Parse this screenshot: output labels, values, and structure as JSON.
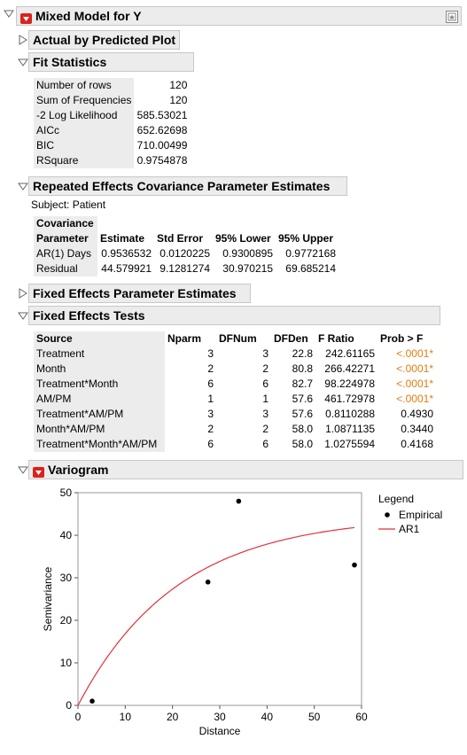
{
  "report": {
    "title": "Mixed Model for Y",
    "sections": {
      "actual_pred": "Actual by Predicted Plot",
      "fit_stats": "Fit Statistics",
      "repeated": "Repeated Effects Covariance Parameter Estimates",
      "fixed_params": "Fixed Effects Parameter Estimates",
      "fixed_tests": "Fixed Effects Tests",
      "variogram": "Variogram"
    }
  },
  "fit_statistics": [
    {
      "label": "Number of rows",
      "value": "120"
    },
    {
      "label": "Sum of Frequencies",
      "value": "120"
    },
    {
      "label": "-2 Log Likelihood",
      "value": "585.53021"
    },
    {
      "label": "AICc",
      "value": "652.62698"
    },
    {
      "label": "BIC",
      "value": "710.00499"
    },
    {
      "label": "RSquare",
      "value": "0.9754878"
    }
  ],
  "repeated": {
    "subject": "Subject: Patient",
    "headers": [
      "Covariance",
      "Parameter",
      "Estimate",
      "Std Error",
      "95% Lower",
      "95% Upper"
    ],
    "rows": [
      {
        "param": "AR(1) Days",
        "estimate": "0.9536532",
        "std_error": "0.0120225",
        "lower": "0.9300895",
        "upper": "0.9772168"
      },
      {
        "param": "Residual",
        "estimate": "44.579921",
        "std_error": "9.1281274",
        "lower": "30.970215",
        "upper": "69.685214"
      }
    ]
  },
  "fixed_tests": {
    "headers": [
      "Source",
      "Nparm",
      "DFNum",
      "DFDen",
      "F Ratio",
      "Prob > F"
    ],
    "rows": [
      {
        "source": "Treatment",
        "nparm": "3",
        "dfnum": "3",
        "dfden": "22.8",
        "f": "242.61165",
        "p": "<.0001*",
        "sig": true
      },
      {
        "source": "Month",
        "nparm": "2",
        "dfnum": "2",
        "dfden": "80.8",
        "f": "266.42271",
        "p": "<.0001*",
        "sig": true
      },
      {
        "source": "Treatment*Month",
        "nparm": "6",
        "dfnum": "6",
        "dfden": "82.7",
        "f": "98.224978",
        "p": "<.0001*",
        "sig": true
      },
      {
        "source": "AM/PM",
        "nparm": "1",
        "dfnum": "1",
        "dfden": "57.6",
        "f": "461.72978",
        "p": "<.0001*",
        "sig": true
      },
      {
        "source": "Treatment*AM/PM",
        "nparm": "3",
        "dfnum": "3",
        "dfden": "57.6",
        "f": "0.8110288",
        "p": "0.4930",
        "sig": false
      },
      {
        "source": "Month*AM/PM",
        "nparm": "2",
        "dfnum": "2",
        "dfden": "58.0",
        "f": "1.0871135",
        "p": "0.3440",
        "sig": false
      },
      {
        "source": "Treatment*Month*AM/PM",
        "nparm": "6",
        "dfnum": "6",
        "dfden": "58.0",
        "f": "1.0275594",
        "p": "0.4168",
        "sig": false
      }
    ]
  },
  "chart_data": {
    "type": "scatter",
    "title": "",
    "xlabel": "Distance",
    "ylabel": "Semivariance",
    "xlim": [
      0,
      60
    ],
    "ylim": [
      0,
      50
    ],
    "xticks": [
      0,
      10,
      20,
      30,
      40,
      50,
      60
    ],
    "yticks": [
      0,
      10,
      20,
      30,
      40,
      50
    ],
    "legend": {
      "title": "Legend",
      "placement": "right",
      "entries": [
        "Empirical",
        "AR1"
      ]
    },
    "series": [
      {
        "name": "Empirical",
        "kind": "points",
        "color": "#000000",
        "points": [
          [
            3,
            1
          ],
          [
            27.5,
            29
          ],
          [
            34,
            48
          ],
          [
            58.5,
            33
          ]
        ]
      },
      {
        "name": "AR1",
        "kind": "curve",
        "color": "#e0303a",
        "sill": 44.579921,
        "rho": 0.9536532
      }
    ]
  },
  "colors": {
    "accent_red": "#d9231c",
    "sig_orange": "#e07d10",
    "header_bg": "#ececec"
  }
}
